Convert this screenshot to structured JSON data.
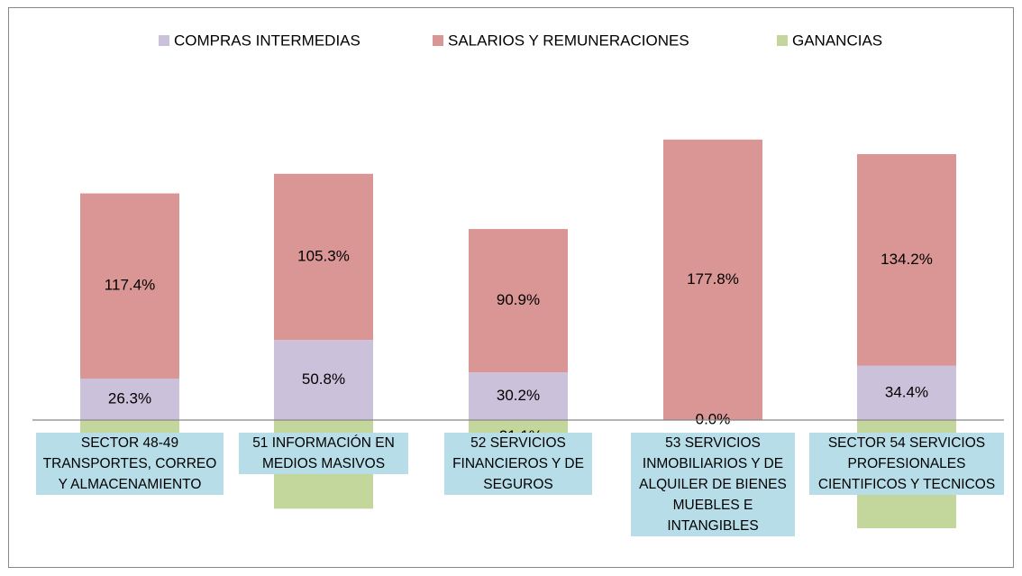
{
  "chart_data": {
    "type": "stacked_bar",
    "categories": [
      "SECTOR 48-49 TRANSPORTES, CORREO Y ALMACENAMIENTO",
      "51 INFORMACIÓN EN MEDIOS MASIVOS",
      "52 SERVICIOS FINANCIEROS Y DE SEGUROS",
      "53 SERVICIOS INMOBILIARIOS Y DE ALQUILER DE BIENES MUEBLES E INTANGIBLES",
      "SECTOR 54 SERVICIOS PROFESIONALES CIENTIFICOS Y TECNICOS"
    ],
    "series": [
      {
        "name": "COMPRAS INTERMEDIAS",
        "color": "#ccc1da",
        "values": [
          26.3,
          50.8,
          30.2,
          null,
          34.4
        ],
        "value_labels": [
          "26.3%",
          "50.8%",
          "30.2%",
          null,
          "34.4%"
        ]
      },
      {
        "name": "SALARIOS Y REMUNERACIONES",
        "color": "#d99694",
        "values": [
          117.4,
          105.3,
          90.9,
          177.8,
          134.2
        ],
        "value_labels": [
          "117.4%",
          "105.3%",
          "90.9%",
          "177.8%",
          "134.2%"
        ]
      },
      {
        "name": "GANANCIAS",
        "color": "#c3d69b",
        "values": [
          -43.7,
          -56.2,
          -21.1,
          0.0,
          -68.6
        ],
        "value_labels": [
          null,
          "-56.2%",
          "-21.1%",
          "0.0%",
          "-68.6%"
        ]
      }
    ],
    "legend": "top"
  }
}
